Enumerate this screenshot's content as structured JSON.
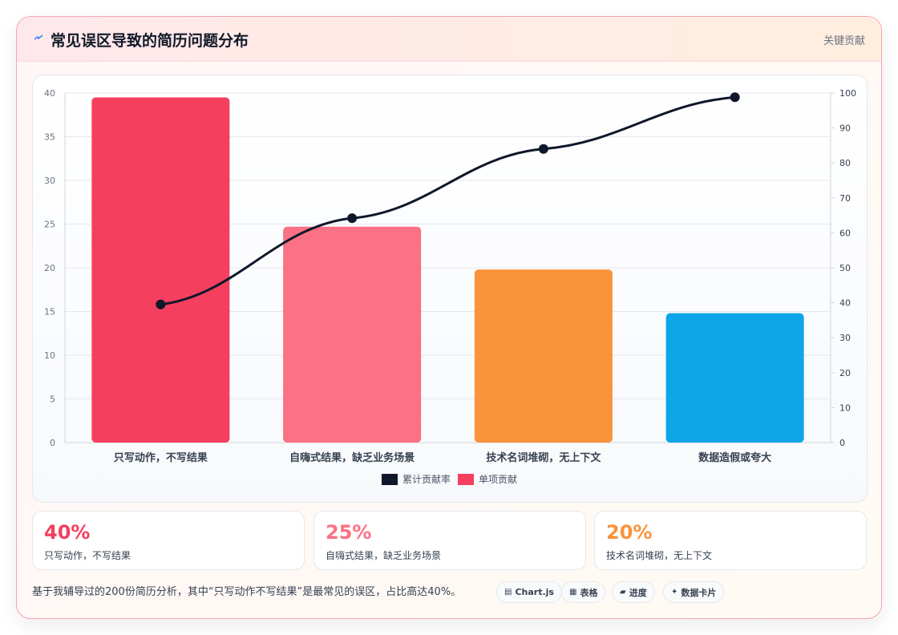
{
  "header": {
    "title": "常见误区导致的简历问题分布",
    "tag": "关键贡献"
  },
  "chart_data": {
    "type": "bar",
    "categories": [
      "只写动作，不写结果",
      "自嗨式结果，缺乏业务场景",
      "技术名词堆砌，无上下文",
      "数据造假或夸大"
    ],
    "series": [
      {
        "name": "单项贡献",
        "type": "bar",
        "axis": "left",
        "values": [
          39.5,
          24.7,
          19.8,
          14.8
        ],
        "colors": [
          "#f43f5e",
          "#fb7185",
          "#fb923c",
          "#0ea5e9"
        ]
      },
      {
        "name": "累计贡献率",
        "type": "line",
        "axis": "right",
        "values": [
          39.5,
          64.2,
          84,
          98.8
        ],
        "color": "#0f172a"
      }
    ],
    "y_left": {
      "min": 0,
      "max": 40,
      "ticks": [
        0,
        5,
        10,
        15,
        20,
        25,
        30,
        35,
        40
      ]
    },
    "y_right": {
      "min": 0,
      "max": 100,
      "ticks": [
        0,
        10,
        20,
        30,
        40,
        50,
        60,
        70,
        80,
        90,
        100
      ]
    },
    "legend": {
      "position": "bottom",
      "items": [
        {
          "label": "累计贡献率",
          "color": "#0f172a"
        },
        {
          "label": "单项贡献",
          "color": "#f43f5e"
        }
      ]
    },
    "grid": true
  },
  "stats": [
    {
      "value": "40%",
      "label": "只写动作，不写结果",
      "color": "#f43f5e"
    },
    {
      "value": "25%",
      "label": "自嗨式结果，缺乏业务场景",
      "color": "#fb7185"
    },
    {
      "value": "20%",
      "label": "技术名词堆砌，无上下文",
      "color": "#fb923c"
    }
  ],
  "footer": {
    "text": "基于我辅导过的200份简历分析，其中“只写动作不写结果”是最常见的误区，占比高达40%。",
    "chips": [
      {
        "icon": "▤",
        "icon_name": "chart-icon",
        "label": "Chart.js"
      },
      {
        "icon": "▦",
        "icon_name": "table-icon",
        "label": "表格"
      },
      {
        "icon": "▰",
        "icon_name": "progress-icon",
        "label": "进度"
      },
      {
        "icon": "✦",
        "icon_name": "sparkle-icon",
        "label": "数据卡片"
      }
    ]
  }
}
